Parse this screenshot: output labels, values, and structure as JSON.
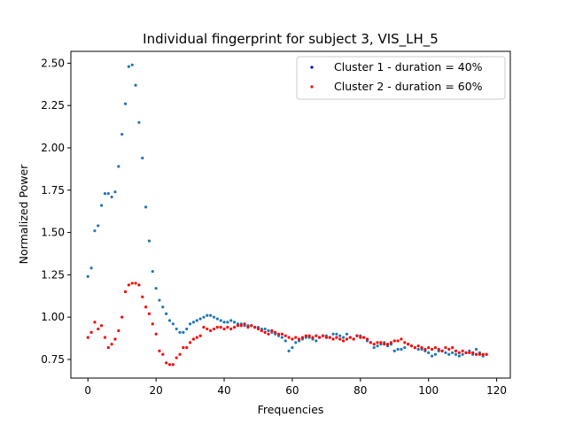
{
  "chart_data": {
    "type": "scatter",
    "title": "Individual fingerprint for subject 3, VIS_LH_5",
    "xlabel": "Frequencies",
    "ylabel": "Normalized Power",
    "xlim": [
      -5,
      124
    ],
    "ylim": [
      0.64,
      2.57
    ],
    "xticks": [
      0,
      20,
      40,
      60,
      80,
      100,
      120
    ],
    "yticks": [
      0.75,
      1.0,
      1.25,
      1.5,
      1.75,
      2.0,
      2.25,
      2.5
    ],
    "xtick_labels": [
      "0",
      "20",
      "40",
      "60",
      "80",
      "100",
      "120"
    ],
    "ytick_labels": [
      "0.75",
      "1.00",
      "1.25",
      "1.50",
      "1.75",
      "2.00",
      "2.25",
      "2.50"
    ],
    "grid": false,
    "legend_position": "top-right",
    "series": [
      {
        "name": "Cluster 1 - duration = 40%",
        "color": "#1f77b4",
        "legend_color": "#0000cc",
        "x": [
          0,
          1,
          2,
          3,
          4,
          5,
          6,
          7,
          8,
          9,
          10,
          11,
          12,
          13,
          14,
          15,
          16,
          17,
          18,
          19,
          20,
          21,
          22,
          23,
          24,
          25,
          26,
          27,
          28,
          29,
          30,
          31,
          32,
          33,
          34,
          35,
          36,
          37,
          38,
          39,
          40,
          41,
          42,
          43,
          44,
          45,
          46,
          47,
          48,
          49,
          50,
          51,
          52,
          53,
          54,
          55,
          56,
          57,
          58,
          59,
          60,
          61,
          62,
          63,
          64,
          65,
          66,
          67,
          68,
          69,
          70,
          71,
          72,
          73,
          74,
          75,
          76,
          77,
          78,
          79,
          80,
          81,
          82,
          83,
          84,
          85,
          86,
          87,
          88,
          89,
          90,
          91,
          92,
          93,
          94,
          95,
          96,
          97,
          98,
          99,
          100,
          101,
          102,
          103,
          104,
          105,
          106,
          107,
          108,
          109,
          110,
          111,
          112,
          113,
          114,
          115,
          116,
          117
        ],
        "y": [
          1.24,
          1.29,
          1.51,
          1.54,
          1.66,
          1.73,
          1.73,
          1.71,
          1.74,
          1.89,
          2.08,
          2.26,
          2.48,
          2.49,
          2.37,
          2.15,
          1.94,
          1.65,
          1.45,
          1.27,
          1.17,
          1.1,
          1.06,
          1.02,
          0.98,
          0.96,
          0.93,
          0.91,
          0.91,
          0.93,
          0.96,
          0.97,
          0.98,
          0.99,
          1.0,
          1.01,
          1.01,
          1.0,
          0.99,
          0.98,
          0.97,
          0.97,
          0.98,
          0.97,
          0.96,
          0.96,
          0.95,
          0.95,
          0.95,
          0.94,
          0.94,
          0.93,
          0.93,
          0.92,
          0.91,
          0.9,
          0.89,
          0.88,
          0.86,
          0.8,
          0.82,
          0.85,
          0.86,
          0.87,
          0.88,
          0.88,
          0.87,
          0.86,
          0.88,
          0.89,
          0.89,
          0.88,
          0.9,
          0.9,
          0.89,
          0.88,
          0.9,
          0.88,
          0.87,
          0.89,
          0.89,
          0.88,
          0.86,
          0.85,
          0.82,
          0.83,
          0.84,
          0.85,
          0.83,
          0.84,
          0.8,
          0.81,
          0.81,
          0.82,
          0.84,
          0.83,
          0.82,
          0.81,
          0.81,
          0.8,
          0.79,
          0.77,
          0.78,
          0.8,
          0.8,
          0.79,
          0.78,
          0.79,
          0.78,
          0.77,
          0.78,
          0.79,
          0.8,
          0.78,
          0.81,
          0.79,
          0.77,
          0.78
        ]
      },
      {
        "name": "Cluster 2 - duration = 60%",
        "color": "#ff0000",
        "legend_color": "#ff0000",
        "x": [
          0,
          1,
          2,
          3,
          4,
          5,
          6,
          7,
          8,
          9,
          10,
          11,
          12,
          13,
          14,
          15,
          16,
          17,
          18,
          19,
          20,
          21,
          22,
          23,
          24,
          25,
          26,
          27,
          28,
          29,
          30,
          31,
          32,
          33,
          34,
          35,
          36,
          37,
          38,
          39,
          40,
          41,
          42,
          43,
          44,
          45,
          46,
          47,
          48,
          49,
          50,
          51,
          52,
          53,
          54,
          55,
          56,
          57,
          58,
          59,
          60,
          61,
          62,
          63,
          64,
          65,
          66,
          67,
          68,
          69,
          70,
          71,
          72,
          73,
          74,
          75,
          76,
          77,
          78,
          79,
          80,
          81,
          82,
          83,
          84,
          85,
          86,
          87,
          88,
          89,
          90,
          91,
          92,
          93,
          94,
          95,
          96,
          97,
          98,
          99,
          100,
          101,
          102,
          103,
          104,
          105,
          106,
          107,
          108,
          109,
          110,
          111,
          112,
          113,
          114,
          115,
          116,
          117
        ],
        "y": [
          0.88,
          0.91,
          0.97,
          0.93,
          0.95,
          0.88,
          0.82,
          0.84,
          0.87,
          0.92,
          1.0,
          1.15,
          1.19,
          1.2,
          1.2,
          1.19,
          1.12,
          1.06,
          1.02,
          0.96,
          0.9,
          0.8,
          0.78,
          0.73,
          0.72,
          0.72,
          0.76,
          0.78,
          0.82,
          0.82,
          0.85,
          0.87,
          0.88,
          0.89,
          0.94,
          0.93,
          0.92,
          0.93,
          0.94,
          0.94,
          0.93,
          0.94,
          0.93,
          0.94,
          0.95,
          0.95,
          0.96,
          0.94,
          0.95,
          0.94,
          0.93,
          0.92,
          0.91,
          0.9,
          0.92,
          0.91,
          0.9,
          0.9,
          0.89,
          0.88,
          0.87,
          0.88,
          0.87,
          0.88,
          0.89,
          0.89,
          0.88,
          0.89,
          0.88,
          0.89,
          0.88,
          0.88,
          0.87,
          0.88,
          0.87,
          0.86,
          0.87,
          0.88,
          0.87,
          0.89,
          0.88,
          0.88,
          0.87,
          0.85,
          0.84,
          0.85,
          0.85,
          0.84,
          0.84,
          0.85,
          0.86,
          0.86,
          0.87,
          0.85,
          0.84,
          0.83,
          0.82,
          0.83,
          0.82,
          0.81,
          0.82,
          0.81,
          0.82,
          0.81,
          0.8,
          0.82,
          0.81,
          0.82,
          0.8,
          0.79,
          0.8,
          0.79,
          0.79,
          0.79,
          0.78,
          0.78,
          0.78,
          0.78
        ]
      }
    ]
  }
}
